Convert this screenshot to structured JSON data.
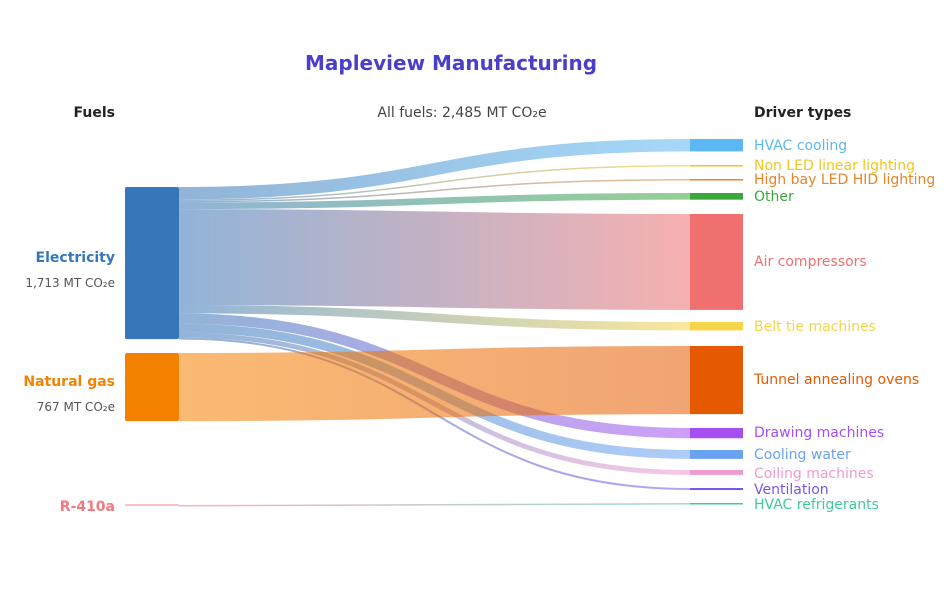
{
  "chart_data": {
    "type": "sankey",
    "title": "Mapleview Manufacturing",
    "title_color": "#4a3fc8",
    "left_header": "Fuels",
    "right_header": "Driver types",
    "total_label": "All fuels: 2,485 MT CO₂e",
    "unit": "MT CO₂e",
    "sources": [
      {
        "name": "Electricity",
        "value": 1713,
        "value_label": "1,713 MT CO₂e",
        "color": "#3776b8"
      },
      {
        "name": "Natural gas",
        "value": 767,
        "value_label": "767 MT CO₂e",
        "color": "#f58100"
      },
      {
        "name": "R-410a",
        "value": 5,
        "value_label": "",
        "color": "#f17a7e"
      }
    ],
    "targets": [
      {
        "name": "HVAC cooling",
        "value": 140,
        "color": "#5bb8f2"
      },
      {
        "name": "Non LED linear lighting",
        "value": 15,
        "color": "#f2c61f"
      },
      {
        "name": "High bay LED HID lighting",
        "value": 15,
        "color": "#e8842a"
      },
      {
        "name": "Other",
        "value": 75,
        "color": "#3aa83a"
      },
      {
        "name": "Air compressors",
        "value": 1080,
        "color": "#f07070"
      },
      {
        "name": "Belt tie machines",
        "value": 95,
        "color": "#f5d54a"
      },
      {
        "name": "Tunnel annealing ovens",
        "value": 767,
        "color": "#e55a00"
      },
      {
        "name": "Drawing machines",
        "value": 115,
        "color": "#a64ff0"
      },
      {
        "name": "Cooling water",
        "value": 100,
        "color": "#6aa2f2"
      },
      {
        "name": "Coiling machines",
        "value": 55,
        "color": "#ef9ad0"
      },
      {
        "name": "Ventilation",
        "value": 23,
        "color": "#7b55e8"
      },
      {
        "name": "HVAC refrigerants",
        "value": 5,
        "color": "#3fc9a0"
      }
    ],
    "links": [
      {
        "source": "Electricity",
        "target": "HVAC cooling",
        "value": 140
      },
      {
        "source": "Electricity",
        "target": "Non LED linear lighting",
        "value": 15
      },
      {
        "source": "Electricity",
        "target": "High bay LED HID lighting",
        "value": 15
      },
      {
        "source": "Electricity",
        "target": "Other",
        "value": 75
      },
      {
        "source": "Electricity",
        "target": "Air compressors",
        "value": 1080
      },
      {
        "source": "Electricity",
        "target": "Belt tie machines",
        "value": 95
      },
      {
        "source": "Electricity",
        "target": "Drawing machines",
        "value": 115
      },
      {
        "source": "Electricity",
        "target": "Cooling water",
        "value": 100
      },
      {
        "source": "Electricity",
        "target": "Coiling machines",
        "value": 55
      },
      {
        "source": "Electricity",
        "target": "Ventilation",
        "value": 23
      },
      {
        "source": "Natural gas",
        "target": "Tunnel annealing ovens",
        "value": 767
      },
      {
        "source": "R-410a",
        "target": "HVAC refrigerants",
        "value": 5
      }
    ]
  }
}
